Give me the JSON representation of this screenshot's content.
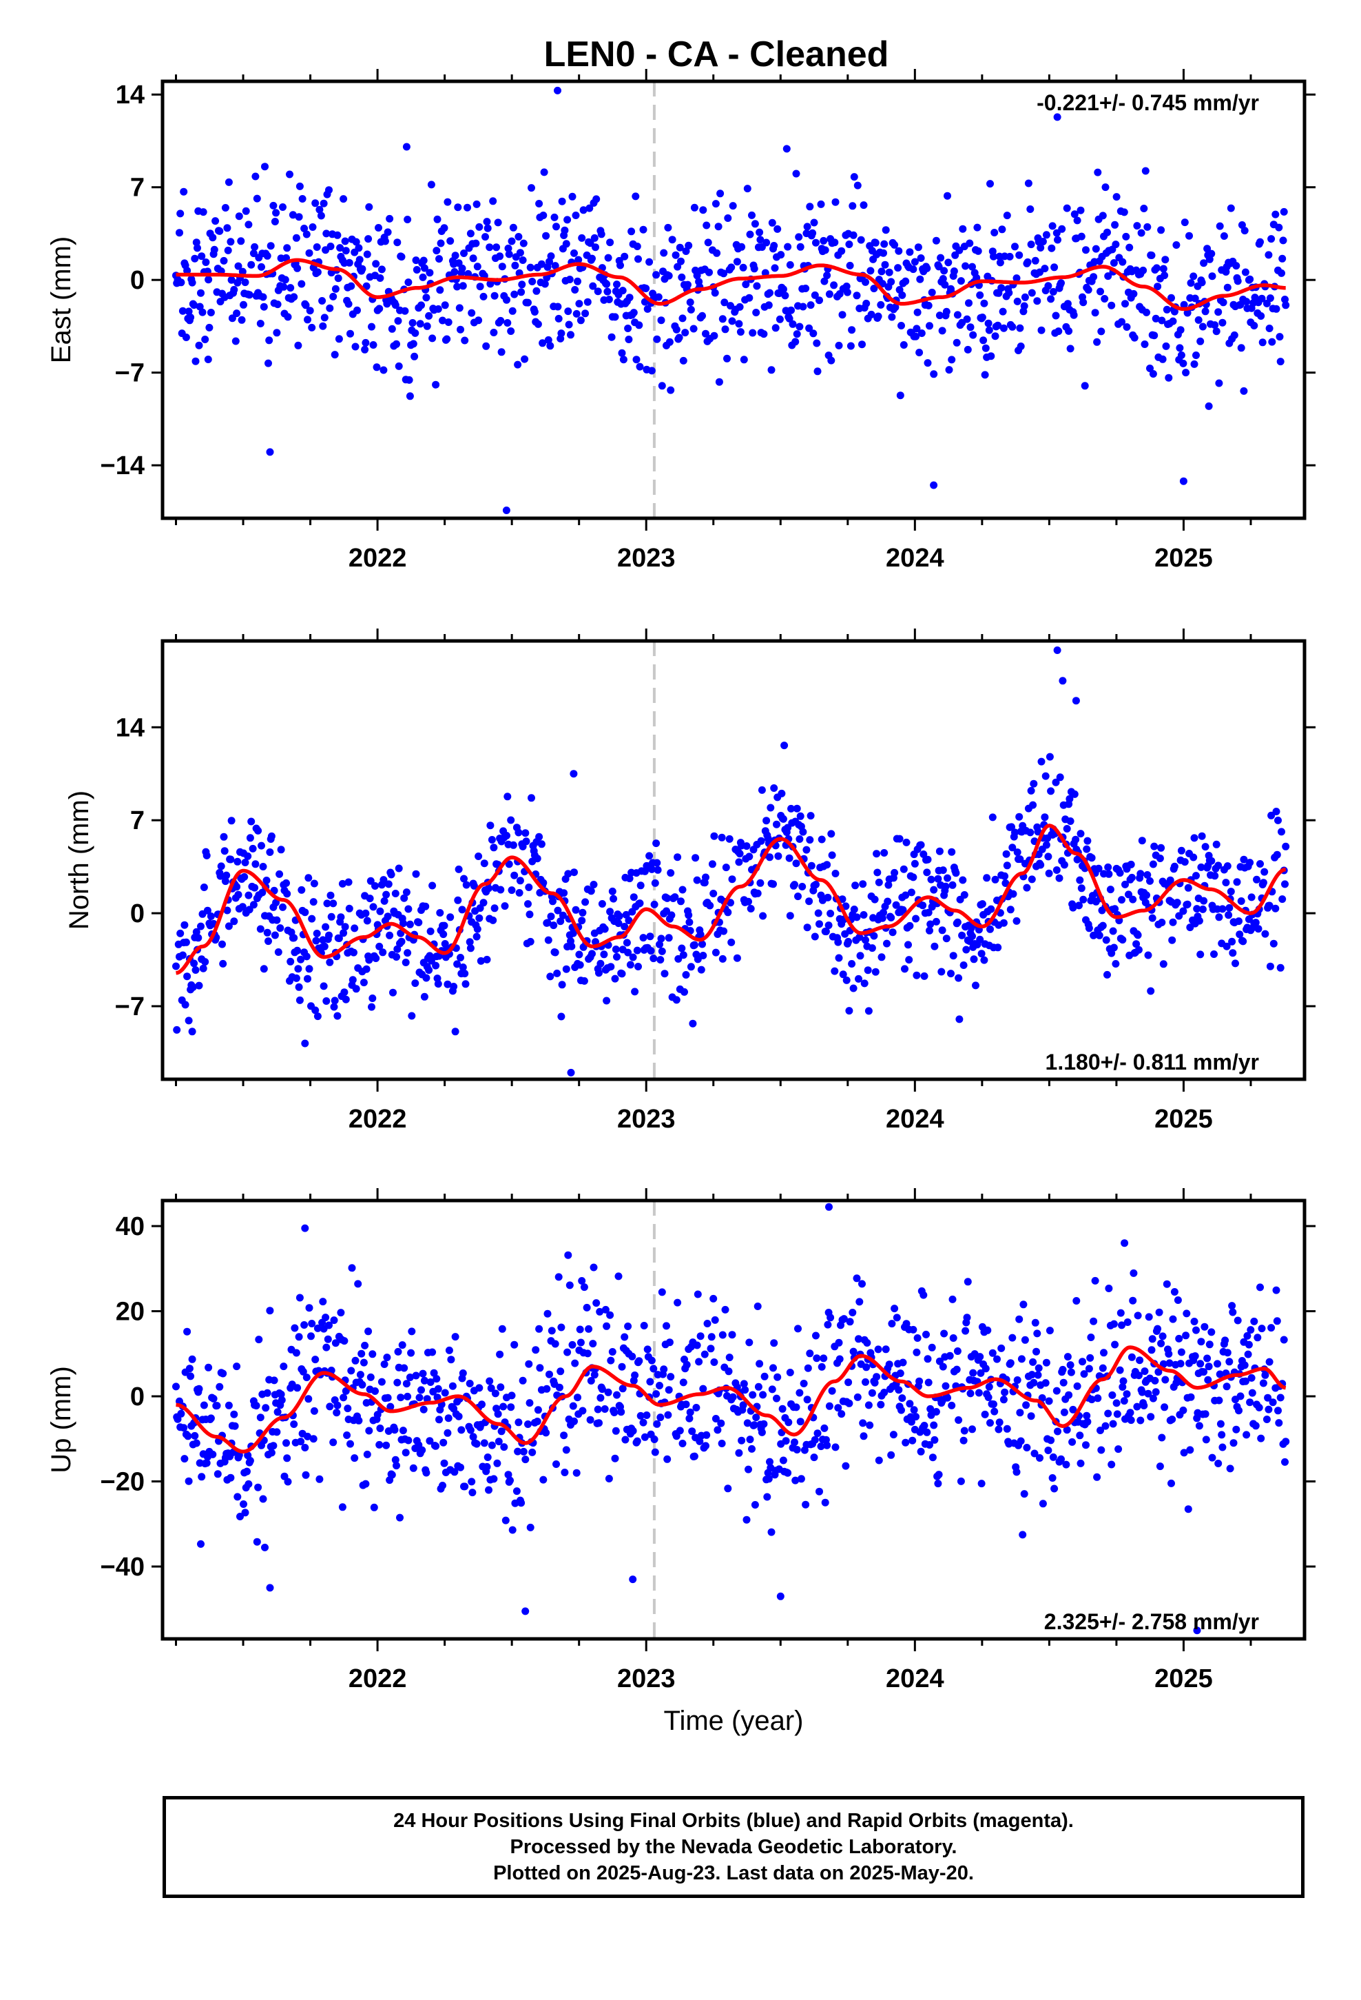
{
  "title": "LEN0  - CA - Cleaned",
  "xlabel": "Time (year)",
  "footer": {
    "line1": "24 Hour Positions Using Final Orbits (blue) and Rapid Orbits (magenta).",
    "line2": "Processed by the Nevada Geodetic Laboratory.",
    "line3": "Plotted on 2025-Aug-23. Last data on 2025-May-20."
  },
  "colors": {
    "final_orbits": "#0000ff",
    "model": "#ff0000",
    "event_line": "#c8c8c8",
    "frame": "#000000"
  },
  "chart_data": [
    {
      "type": "scatter",
      "ylabel": "East (mm)",
      "rate_label": "-0.221+/- 0.745 mm/yr",
      "rate_position": "top-right",
      "xlim": [
        2021.2,
        2025.45
      ],
      "ylim": [
        -18,
        15
      ],
      "xticks": [
        2022,
        2023,
        2024,
        2025
      ],
      "xtick_labels": [
        "2022",
        "2023",
        "2024",
        "2025"
      ],
      "yticks": [
        14,
        7,
        0,
        -7,
        -14
      ],
      "ytick_labels": [
        "14",
        "7",
        "0",
        "−7",
        "−14"
      ],
      "event_line_x": 2023.03,
      "series": [
        {
          "name": "Final Orbits (blue)",
          "style": "points",
          "noise_sd": 3.3,
          "outliers": [
            [
              2022.67,
              14.3
            ],
            [
              2022.48,
              -17.4
            ],
            [
              2024.53,
              12.3
            ],
            [
              2025.0,
              -15.2
            ],
            [
              2024.07,
              -15.5
            ],
            [
              2021.6,
              -13.0
            ],
            [
              2021.37,
              -6.0
            ]
          ],
          "x": [
            2021.25,
            2021.5,
            2021.75,
            2022.0,
            2022.25,
            2022.5,
            2022.75,
            2023.0,
            2023.25,
            2023.5,
            2023.75,
            2024.0,
            2024.25,
            2024.5,
            2024.75,
            2025.0,
            2025.25,
            2025.38
          ],
          "y": [
            0.4,
            0.3,
            1.6,
            -1.5,
            0.1,
            -0.1,
            1.2,
            -1.9,
            0.0,
            0.3,
            1.1,
            -2.0,
            -0.2,
            -0.3,
            1.0,
            -2.2,
            -0.4,
            -0.6
          ]
        },
        {
          "name": "Model fit",
          "style": "line",
          "x": [
            2021.25,
            2021.4,
            2021.55,
            2021.7,
            2021.85,
            2022.0,
            2022.15,
            2022.3,
            2022.45,
            2022.6,
            2022.75,
            2022.9,
            2023.05,
            2023.2,
            2023.35,
            2023.5,
            2023.65,
            2023.8,
            2023.95,
            2024.1,
            2024.25,
            2024.4,
            2024.55,
            2024.7,
            2024.85,
            2025.0,
            2025.15,
            2025.3,
            2025.38
          ],
          "y": [
            0.4,
            0.4,
            0.3,
            1.5,
            0.8,
            -1.3,
            -0.6,
            0.2,
            0.0,
            0.4,
            1.2,
            0.2,
            -1.8,
            -0.7,
            0.1,
            0.3,
            1.1,
            0.4,
            -1.8,
            -1.3,
            -0.1,
            -0.2,
            0.2,
            1.0,
            -0.5,
            -2.2,
            -1.2,
            -0.4,
            -0.6
          ]
        }
      ]
    },
    {
      "type": "scatter",
      "ylabel": "North (mm)",
      "rate_label": "1.180+/- 0.811 mm/yr",
      "rate_position": "bottom-right",
      "xlim": [
        2021.2,
        2025.45
      ],
      "ylim": [
        -12.5,
        20.5
      ],
      "xticks": [
        2022,
        2023,
        2024,
        2025
      ],
      "xtick_labels": [
        "2022",
        "2023",
        "2024",
        "2025"
      ],
      "yticks": [
        14,
        7,
        0,
        -7
      ],
      "ytick_labels": [
        "14",
        "7",
        "0",
        "−7"
      ],
      "event_line_x": 2023.03,
      "series": [
        {
          "name": "Final Orbits (blue)",
          "style": "points",
          "noise_sd": 2.6,
          "outliers": [
            [
              2024.53,
              19.8
            ],
            [
              2024.55,
              17.5
            ],
            [
              2024.6,
              16.0
            ],
            [
              2022.72,
              -12.0
            ],
            [
              2021.73,
              -9.8
            ],
            [
              2022.73,
              10.5
            ]
          ],
          "x": [
            2021.25,
            2021.5,
            2021.8,
            2022.05,
            2022.25,
            2022.5,
            2022.8,
            2023.0,
            2023.15,
            2023.5,
            2023.8,
            2024.0,
            2024.2,
            2024.5,
            2024.75,
            2025.0,
            2025.2,
            2025.38
          ],
          "y": [
            -4.5,
            3.2,
            -3.3,
            -0.8,
            -3.0,
            4.2,
            -2.5,
            0.3,
            -2.0,
            5.6,
            -1.5,
            1.2,
            -1.0,
            6.6,
            -0.3,
            2.5,
            0.0,
            3.3
          ]
        },
        {
          "name": "Model fit",
          "style": "line",
          "x": [
            2021.25,
            2021.35,
            2021.5,
            2021.65,
            2021.8,
            2021.95,
            2022.05,
            2022.15,
            2022.25,
            2022.4,
            2022.5,
            2022.65,
            2022.8,
            2022.9,
            2023.0,
            2023.1,
            2023.2,
            2023.35,
            2023.5,
            2023.65,
            2023.8,
            2023.9,
            2024.05,
            2024.15,
            2024.25,
            2024.4,
            2024.5,
            2024.6,
            2024.75,
            2024.85,
            2025.0,
            2025.1,
            2025.25,
            2025.38
          ],
          "y": [
            -4.5,
            -2.5,
            3.2,
            1.0,
            -3.3,
            -1.8,
            -0.8,
            -1.8,
            -3.0,
            2.2,
            4.2,
            1.5,
            -2.5,
            -1.8,
            0.3,
            -1.0,
            -2.0,
            2.0,
            5.6,
            2.5,
            -1.5,
            -1.0,
            1.2,
            0.2,
            -1.0,
            3.0,
            6.6,
            4.5,
            -0.3,
            0.2,
            2.5,
            1.8,
            0.0,
            3.3
          ]
        }
      ]
    },
    {
      "type": "scatter",
      "ylabel": "Up (mm)",
      "rate_label": "2.325+/- 2.758 mm/yr",
      "rate_position": "bottom-right",
      "xlim": [
        2021.2,
        2025.45
      ],
      "ylim": [
        -57,
        46
      ],
      "xticks": [
        2022,
        2023,
        2024,
        2025
      ],
      "xtick_labels": [
        "2022",
        "2023",
        "2024",
        "2025"
      ],
      "yticks": [
        40,
        20,
        0,
        -20,
        -40
      ],
      "ytick_labels": [
        "40",
        "20",
        "0",
        "−20",
        "−40"
      ],
      "event_line_x": 2023.03,
      "series": [
        {
          "name": "Final Orbits (blue)",
          "style": "points",
          "noise_sd": 10.5,
          "outliers": [
            [
              2023.68,
              44.5
            ],
            [
              2021.73,
              39.5
            ],
            [
              2025.05,
              -55.0
            ],
            [
              2022.55,
              -50.5
            ],
            [
              2022.95,
              -43.0
            ],
            [
              2023.5,
              -47.0
            ],
            [
              2021.6,
              -45.0
            ],
            [
              2024.78,
              36.0
            ]
          ],
          "x": [
            2021.25,
            2021.5,
            2021.8,
            2022.05,
            2022.25,
            2022.5,
            2022.75,
            2023.0,
            2023.25,
            2023.5,
            2023.8,
            2024.0,
            2024.25,
            2024.5,
            2024.8,
            2025.0,
            2025.25,
            2025.38
          ],
          "y": [
            -2.0,
            -13.0,
            5.5,
            -3.5,
            0.0,
            -11.0,
            7.0,
            -2.0,
            2.0,
            -9.0,
            9.5,
            0.0,
            4.0,
            -7.0,
            11.5,
            2.0,
            6.5,
            2.0
          ]
        },
        {
          "name": "Model fit",
          "style": "line",
          "x": [
            2021.25,
            2021.4,
            2021.5,
            2021.65,
            2021.8,
            2021.95,
            2022.05,
            2022.2,
            2022.3,
            2022.45,
            2022.55,
            2022.7,
            2022.8,
            2022.95,
            2023.05,
            2023.2,
            2023.3,
            2023.45,
            2023.55,
            2023.7,
            2023.8,
            2023.95,
            2024.05,
            2024.2,
            2024.3,
            2024.45,
            2024.55,
            2024.7,
            2024.8,
            2024.95,
            2025.05,
            2025.2,
            2025.3,
            2025.38
          ],
          "y": [
            -2.0,
            -9.5,
            -13.0,
            -5.0,
            5.5,
            0.5,
            -3.5,
            -1.5,
            0.0,
            -6.5,
            -11.0,
            0.0,
            7.0,
            2.5,
            -2.0,
            0.5,
            2.0,
            -4.5,
            -9.0,
            3.5,
            9.5,
            3.5,
            0.0,
            2.0,
            4.0,
            -1.0,
            -7.0,
            4.0,
            11.5,
            6.0,
            2.0,
            5.0,
            6.5,
            2.0
          ]
        }
      ]
    }
  ]
}
